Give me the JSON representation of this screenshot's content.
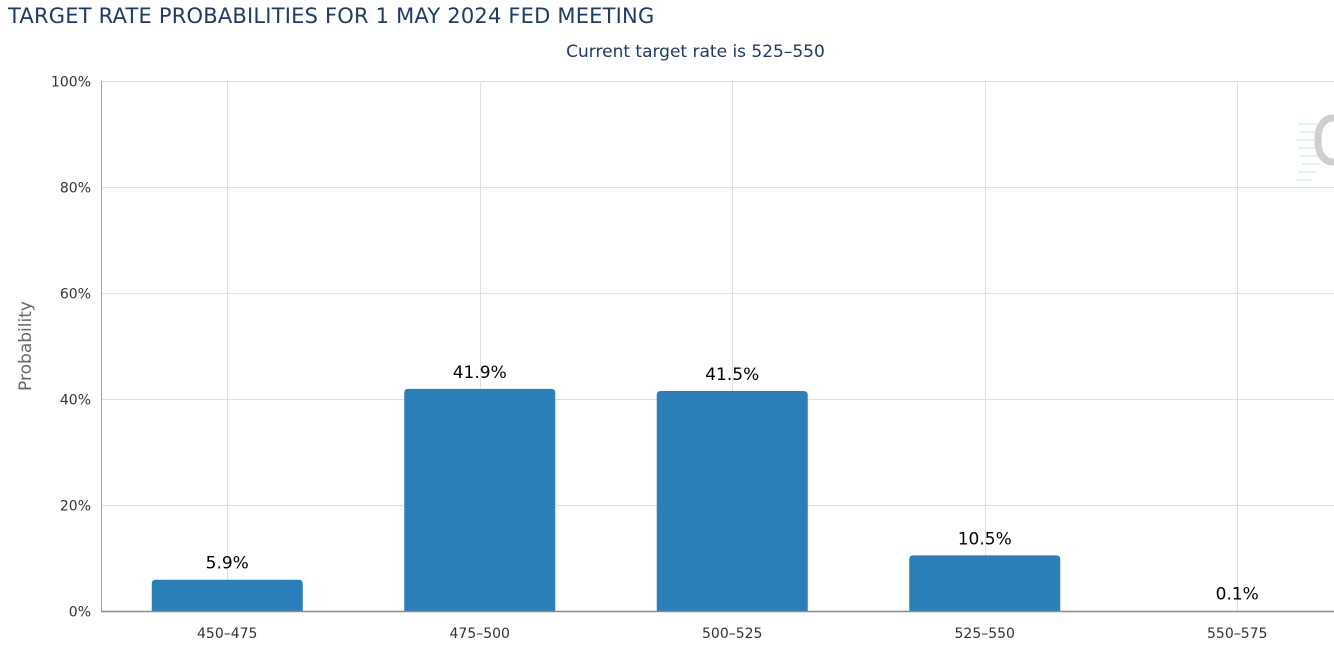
{
  "title": "TARGET RATE PROBABILITIES FOR 1 MAY 2024 FED MEETING",
  "subtitle": "Current target rate is 525–550",
  "chart_data": {
    "type": "bar",
    "categories": [
      "450–475",
      "475–500",
      "500–525",
      "525–550",
      "550–575"
    ],
    "values": [
      5.9,
      41.9,
      41.5,
      10.5,
      0.1
    ],
    "data_labels": [
      "5.9%",
      "41.9%",
      "41.5%",
      "10.5%",
      "0.1%"
    ],
    "ylabel": "Probability",
    "ylim": [
      0,
      100
    ],
    "yticks": [
      0,
      20,
      40,
      60,
      80,
      100
    ],
    "ytick_labels": [
      "0%",
      "20%",
      "40%",
      "60%",
      "80%",
      "100%"
    ],
    "grid": true,
    "bar_color": "#2a7fb8"
  }
}
